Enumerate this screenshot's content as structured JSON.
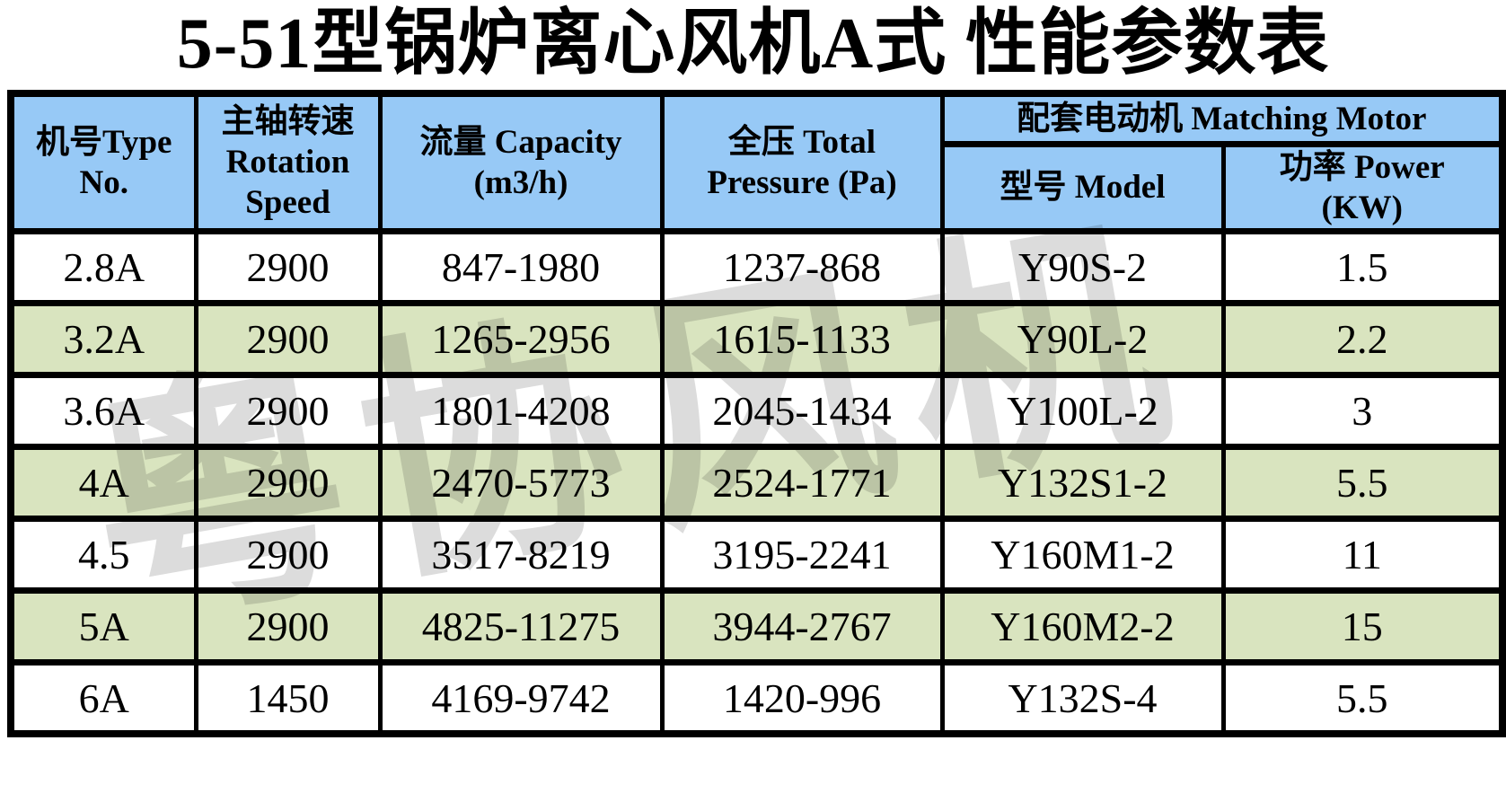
{
  "title": "5-51型锅炉离心风机A式 性能参数表",
  "watermark": "粤协风机",
  "colors": {
    "header_bg": "#97C9F6",
    "row_alt_green": "#D9E4BF",
    "row_white": "#FFFFFF",
    "border": "#000000",
    "watermark_gray": "#DCDCDC",
    "text": "#000000"
  },
  "table": {
    "header": {
      "type_no": [
        "机号Type",
        "No."
      ],
      "rotation_speed": [
        "主轴转速",
        "Rotation",
        "Speed"
      ],
      "capacity": [
        "流量 Capacity",
        "(m3/h)"
      ],
      "pressure": [
        "全压 Total",
        "Pressure (Pa)"
      ],
      "motor_group": "配套电动机 Matching Motor",
      "model": "型号 Model",
      "power": [
        "功率 Power",
        "(KW)"
      ]
    },
    "rows": [
      [
        "2.8A",
        "2900",
        "847-1980",
        "1237-868",
        "Y90S-2",
        "1.5"
      ],
      [
        "3.2A",
        "2900",
        "1265-2956",
        "1615-1133",
        "Y90L-2",
        "2.2"
      ],
      [
        "3.6A",
        "2900",
        "1801-4208",
        "2045-1434",
        "Y100L-2",
        "3"
      ],
      [
        "4A",
        "2900",
        "2470-5773",
        "2524-1771",
        "Y132S1-2",
        "5.5"
      ],
      [
        "4.5",
        "2900",
        "3517-8219",
        "3195-2241",
        "Y160M1-2",
        "11"
      ],
      [
        "5A",
        "2900",
        "4825-11275",
        "3944-2767",
        "Y160M2-2",
        "15"
      ],
      [
        "6A",
        "1450",
        "4169-9742",
        "1420-996",
        "Y132S-4",
        "5.5"
      ]
    ]
  }
}
